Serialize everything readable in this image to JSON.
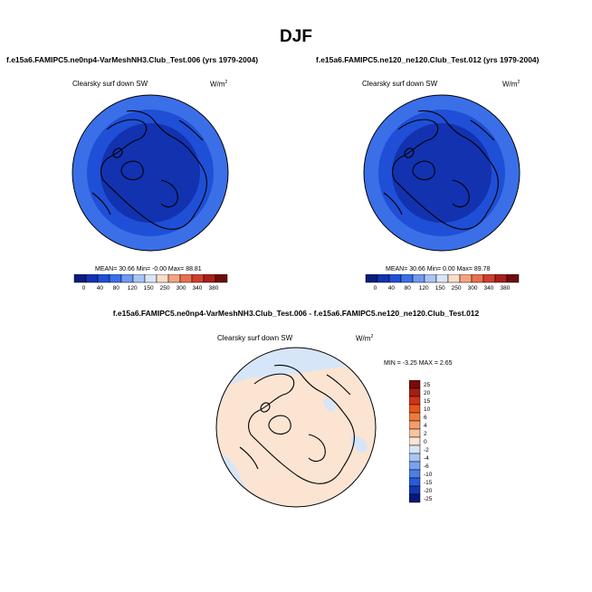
{
  "season": "DJF",
  "panels": [
    {
      "case_title": "f.e15a6.FAMIPC5.ne0np4-VarMeshNH3.Club_Test.006 (yrs 1979-2004)",
      "plot_title": "Clearsky surf down SW",
      "units": "W/m",
      "units_exp": "2",
      "stats": "MEAN=  30.66  Min=  -0.00  Max=  88.81"
    },
    {
      "case_title": "f.e15a6.FAMIPC5.ne120_ne120.Club_Test.012 (yrs 1979-2004)",
      "plot_title": "Clearsky surf down SW",
      "units": "W/m",
      "units_exp": "2",
      "stats": "MEAN=  30.66  Min=   0.00  Max=  89.78"
    }
  ],
  "difference": {
    "title": "f.e15a6.FAMIPC5.ne0np4-VarMeshNH3.Club_Test.006 - f.e15a6.FAMIPC5.ne120_ne120.Club_Test.012",
    "plot_title": "Clearsky surf down SW",
    "units": "W/m",
    "units_exp": "2",
    "stats": "MIN =  -3.25 MAX =   2.65"
  },
  "chart_data": [
    {
      "type": "heatmap",
      "projection": "north polar stereographic",
      "title": "Clearsky surf down SW",
      "units": "W/m2",
      "colorbar_labels": [
        "0",
        "40",
        "80",
        "120",
        "150",
        "250",
        "300",
        "340",
        "380"
      ],
      "colorbar_colors": [
        "#081d7e",
        "#1232b0",
        "#1f4fd6",
        "#3a6fe8",
        "#6f98f0",
        "#a9c4f4",
        "#d9e4f7",
        "#fbdcc8",
        "#f4a380",
        "#e8704f",
        "#cf3e2e",
        "#a81f1a",
        "#6e0d0d"
      ],
      "rings": [
        {
          "level": "outer",
          "color": "#3a6fe8"
        },
        {
          "level": "middle",
          "color": "#1f4fd6"
        },
        {
          "level": "inner",
          "color": "#1232b0"
        }
      ],
      "mean": 30.66,
      "min": -0.0,
      "max": 88.81
    },
    {
      "type": "heatmap",
      "projection": "north polar stereographic",
      "title": "Clearsky surf down SW",
      "units": "W/m2",
      "colorbar_labels": [
        "0",
        "40",
        "80",
        "120",
        "150",
        "250",
        "300",
        "340",
        "380"
      ],
      "colorbar_colors": [
        "#081d7e",
        "#1232b0",
        "#1f4fd6",
        "#3a6fe8",
        "#6f98f0",
        "#a9c4f4",
        "#d9e4f7",
        "#fbdcc8",
        "#f4a380",
        "#e8704f",
        "#cf3e2e",
        "#a81f1a",
        "#6e0d0d"
      ],
      "rings": [
        {
          "level": "outer",
          "color": "#3a6fe8"
        },
        {
          "level": "middle",
          "color": "#1f4fd6"
        },
        {
          "level": "inner",
          "color": "#1232b0"
        }
      ],
      "mean": 30.66,
      "min": 0.0,
      "max": 89.78
    },
    {
      "type": "heatmap",
      "projection": "north polar stereographic",
      "title": "Clearsky surf down SW",
      "units": "W/m2",
      "colorbar_orientation": "vertical",
      "colorbar_labels": [
        "25",
        "20",
        "15",
        "10",
        "6",
        "4",
        "2",
        "0",
        "-2",
        "-4",
        "-6",
        "-10",
        "-15",
        "-20",
        "-25"
      ],
      "colorbar_colors": [
        "#7a0b0b",
        "#a81d14",
        "#cf3515",
        "#e8561c",
        "#f07a3c",
        "#f59e6a",
        "#f8c4a0",
        "#fbe4d2",
        "#d6e6f8",
        "#a8c6f4",
        "#7aa3ee",
        "#4e7ee6",
        "#2a5bd8",
        "#1238b0",
        "#06187a"
      ],
      "base_color": "#fbe4d2",
      "negative_color": "#d6e6f8",
      "min": -3.25,
      "max": 2.65
    }
  ]
}
